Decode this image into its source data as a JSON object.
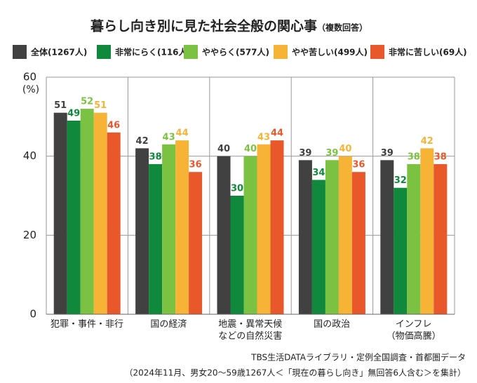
{
  "chart_data": {
    "type": "bar",
    "title": "暮らし向き別に見た社会全般の関心事",
    "subtitle": "（複数回答）",
    "y_unit": "(%)",
    "categories": [
      "犯罪・事件・非行",
      "国の経済",
      "地震・異常天候\nなどの自然災害",
      "国の政治",
      "インフレ\n（物価高騰）"
    ],
    "series": [
      {
        "name": "全体(1267人)",
        "color": "#414141",
        "values": [
          51,
          42,
          40,
          39,
          39
        ]
      },
      {
        "name": "非常にらく(116人)",
        "color": "#10893c",
        "values": [
          49,
          38,
          30,
          34,
          32
        ]
      },
      {
        "name": "ややらく(577人)",
        "color": "#7cc242",
        "values": [
          52,
          43,
          40,
          39,
          38
        ]
      },
      {
        "name": "やや苦しい(499人)",
        "color": "#f6b336",
        "values": [
          51,
          44,
          43,
          40,
          42
        ]
      },
      {
        "name": "非常に苦しい(69人)",
        "color": "#e9582b",
        "values": [
          46,
          36,
          44,
          36,
          38
        ]
      }
    ],
    "ylim": [
      0,
      60
    ],
    "yticks": [
      0,
      20,
      40,
      60
    ],
    "grid": true,
    "source": [
      "TBS生活DATAライブラリ・定例全国調査・首都圏データ",
      "（2024年11月、男女20～59歳1267人＜「現在の暮らし向き」無回答6人含む＞を集計）"
    ]
  }
}
